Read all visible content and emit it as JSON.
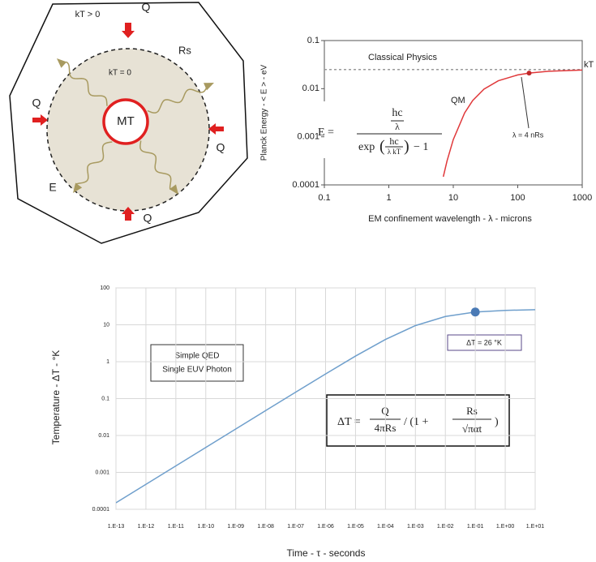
{
  "diagram": {
    "labels": [
      "kT > 0",
      "Q",
      "Rs",
      "kT = 0",
      "MT",
      "Q",
      "Q",
      "E",
      "Q"
    ]
  },
  "chart_data": [
    {
      "type": "line",
      "xlabel": "EM confinement wavelength - λ -  microns",
      "ylabel": "Planck Energy - < E > - eV",
      "log_x": true,
      "log_y": true,
      "grid": false,
      "xlim": [
        0.1,
        1000
      ],
      "ylim": [
        0.0001,
        0.1
      ],
      "xticks": [
        0.1,
        1,
        10,
        100,
        1000
      ],
      "yticks": [
        0.0001,
        0.001,
        0.01,
        0.1
      ],
      "series": [
        {
          "name": "Classical Physics",
          "color": "#9a9a9a",
          "dashed": true,
          "x": [
            0.1,
            1000
          ],
          "values": [
            0.025,
            0.025
          ]
        },
        {
          "name": "QM",
          "color": "#e0383a",
          "dashed": false,
          "x": [
            7,
            8,
            10,
            15,
            20,
            30,
            50,
            100,
            150,
            300,
            1000
          ],
          "values": [
            0.000148,
            0.000315,
            0.000876,
            0.00314,
            0.00567,
            0.0098,
            0.0146,
            0.0193,
            0.0211,
            0.023,
            0.0244
          ]
        }
      ],
      "annotations": [
        "kT",
        "λ = 4 nRs"
      ],
      "marker": {
        "x": 150,
        "y": 0.0211,
        "color": "#c0282a"
      },
      "equation": {
        "lhs": "E =",
        "num_top": "hc",
        "num_bottom": "λ",
        "den_func": "exp",
        "den_top": "hc",
        "den_bottom": "λ kT",
        "den_tail": "− 1"
      }
    },
    {
      "type": "line",
      "xlabel": "Time - τ - seconds",
      "ylabel": "Temperature - ΔT - °K",
      "log_x": true,
      "log_y": true,
      "grid": true,
      "xlim": [
        1e-13,
        10
      ],
      "ylim": [
        0.0001,
        100
      ],
      "xticks": [
        {
          "value": 1e-13,
          "label": "1.E-13"
        },
        {
          "value": 1e-12,
          "label": "1.E-12"
        },
        {
          "value": 1e-11,
          "label": "1.E-11"
        },
        {
          "value": 1e-10,
          "label": "1.E-10"
        },
        {
          "value": 1e-09,
          "label": "1.E-09"
        },
        {
          "value": 1e-08,
          "label": "1.E-08"
        },
        {
          "value": 1e-07,
          "label": "1.E-07"
        },
        {
          "value": 1e-06,
          "label": "1.E-06"
        },
        {
          "value": 1e-05,
          "label": "1.E-05"
        },
        {
          "value": 0.0001,
          "label": "1.E-04"
        },
        {
          "value": 0.001,
          "label": "1.E-03"
        },
        {
          "value": 0.01,
          "label": "1.E-02"
        },
        {
          "value": 0.1,
          "label": "1.E-01"
        },
        {
          "value": 1,
          "label": "1.E+00"
        },
        {
          "value": 10,
          "label": "1.E+01"
        }
      ],
      "yticks": [
        0.0001,
        0.001,
        0.01,
        0.1,
        1,
        10,
        100
      ],
      "series": [
        {
          "color": "#6f9fcc",
          "dashed": false,
          "x": [
            1e-13,
            1e-12,
            1e-11,
            1e-10,
            1e-09,
            1e-08,
            1e-07,
            1e-06,
            1e-05,
            0.0001,
            0.001,
            0.01,
            0.1,
            1,
            10
          ],
          "values": [
            0.00015,
            0.000475,
            0.0015,
            0.00475,
            0.015,
            0.0473,
            0.149,
            0.466,
            1.42,
            4.01,
            9.52,
            16.8,
            22.2,
            24.6,
            25.6
          ]
        }
      ],
      "annotations": [
        "ΔT = 26 °K"
      ],
      "note_box": [
        "Simple QED",
        "Single EUV Photon"
      ],
      "marker": {
        "x": 0.1,
        "y": 22.2,
        "color": "#4a7ab5"
      },
      "equation": {
        "lhs": "ΔT =",
        "num_top": "Q",
        "num_bottom": "4πRs",
        "mid": "/ (1 +",
        "den_top": "Rs",
        "den_bottom": "√παt",
        "den_tail": ")"
      }
    }
  ]
}
